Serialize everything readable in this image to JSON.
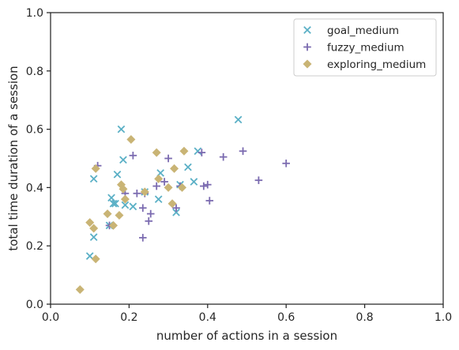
{
  "chart_data": {
    "type": "scatter",
    "title": "",
    "xlabel": "number of actions in a session",
    "ylabel": "total time duration of a session",
    "xlim": [
      0.0,
      1.0
    ],
    "ylim": [
      0.0,
      1.0
    ],
    "xticks": [
      "0.0",
      "0.2",
      "0.4",
      "0.6",
      "0.8",
      "1.0"
    ],
    "yticks": [
      "0.0",
      "0.2",
      "0.4",
      "0.6",
      "0.8",
      "1.0"
    ],
    "grid": false,
    "legend_position": "top-right",
    "series": [
      {
        "name": "goal_medium",
        "marker": "x",
        "color": "#5bb0c6",
        "points": [
          [
            0.1,
            0.165
          ],
          [
            0.11,
            0.23
          ],
          [
            0.11,
            0.43
          ],
          [
            0.15,
            0.27
          ],
          [
            0.155,
            0.365
          ],
          [
            0.16,
            0.345
          ],
          [
            0.165,
            0.345
          ],
          [
            0.17,
            0.445
          ],
          [
            0.18,
            0.6
          ],
          [
            0.185,
            0.495
          ],
          [
            0.19,
            0.34
          ],
          [
            0.21,
            0.335
          ],
          [
            0.24,
            0.385
          ],
          [
            0.275,
            0.36
          ],
          [
            0.28,
            0.45
          ],
          [
            0.32,
            0.315
          ],
          [
            0.33,
            0.41
          ],
          [
            0.35,
            0.47
          ],
          [
            0.365,
            0.42
          ],
          [
            0.375,
            0.525
          ],
          [
            0.478,
            0.633
          ]
        ]
      },
      {
        "name": "fuzzy_medium",
        "marker": "+",
        "color": "#7b6bb0",
        "points": [
          [
            0.12,
            0.475
          ],
          [
            0.15,
            0.27
          ],
          [
            0.19,
            0.38
          ],
          [
            0.21,
            0.51
          ],
          [
            0.22,
            0.38
          ],
          [
            0.235,
            0.33
          ],
          [
            0.235,
            0.228
          ],
          [
            0.24,
            0.38
          ],
          [
            0.25,
            0.285
          ],
          [
            0.255,
            0.31
          ],
          [
            0.27,
            0.405
          ],
          [
            0.29,
            0.42
          ],
          [
            0.3,
            0.5
          ],
          [
            0.32,
            0.33
          ],
          [
            0.33,
            0.405
          ],
          [
            0.385,
            0.52
          ],
          [
            0.39,
            0.405
          ],
          [
            0.4,
            0.41
          ],
          [
            0.405,
            0.355
          ],
          [
            0.44,
            0.505
          ],
          [
            0.49,
            0.525
          ],
          [
            0.53,
            0.425
          ],
          [
            0.6,
            0.483
          ]
        ]
      },
      {
        "name": "exploring_medium",
        "marker": "D",
        "color": "#c9b475",
        "points": [
          [
            0.075,
            0.05
          ],
          [
            0.1,
            0.28
          ],
          [
            0.11,
            0.26
          ],
          [
            0.115,
            0.465
          ],
          [
            0.115,
            0.155
          ],
          [
            0.145,
            0.31
          ],
          [
            0.16,
            0.27
          ],
          [
            0.175,
            0.305
          ],
          [
            0.18,
            0.41
          ],
          [
            0.185,
            0.395
          ],
          [
            0.19,
            0.36
          ],
          [
            0.205,
            0.565
          ],
          [
            0.24,
            0.385
          ],
          [
            0.27,
            0.52
          ],
          [
            0.275,
            0.43
          ],
          [
            0.3,
            0.4
          ],
          [
            0.31,
            0.345
          ],
          [
            0.315,
            0.465
          ],
          [
            0.335,
            0.4
          ],
          [
            0.34,
            0.525
          ]
        ]
      }
    ]
  }
}
